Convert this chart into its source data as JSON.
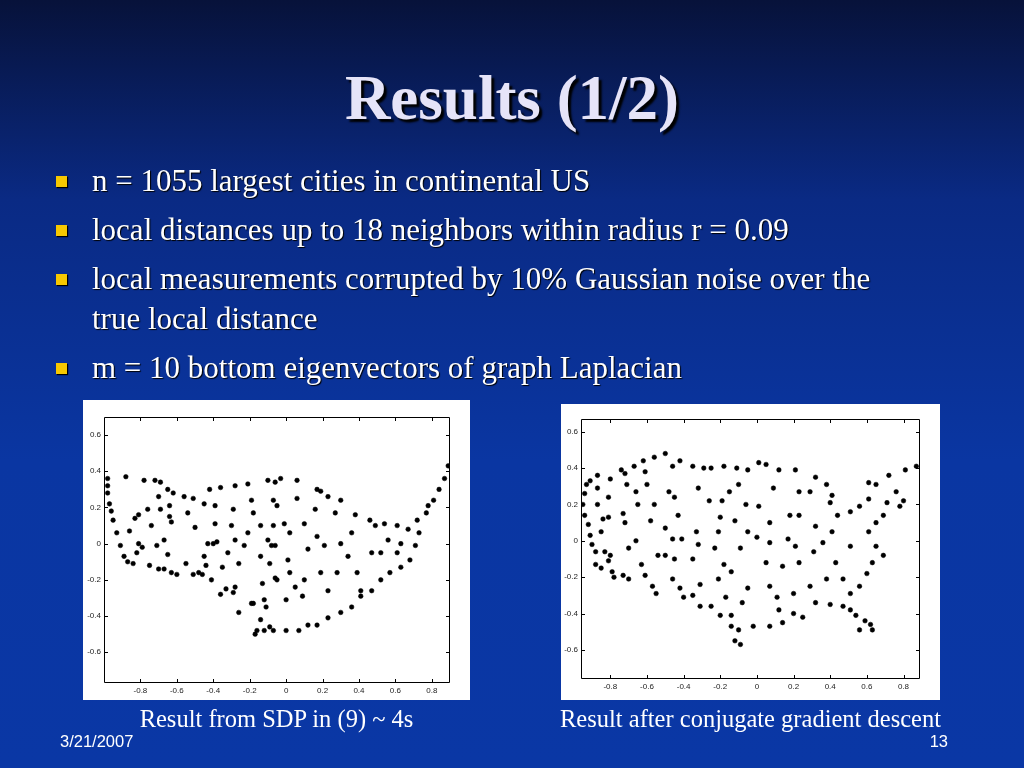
{
  "chart_data": [
    {
      "type": "other",
      "title": "Results (1/2)",
      "annotations": [
        "n = 1055 largest cities in continental US",
        "local distances up to 18 neighbors within radius r = 0.09",
        "local measurements corrupted by 10% Gaussian noise over the true local distance",
        "m = 10 bottom eigenvectors of graph Laplacian",
        "3/21/2007",
        "13"
      ]
    },
    {
      "type": "scatter",
      "annotations": [
        "Result from SDP in (9) ~ 4s"
      ],
      "color": "#000000",
      "marker": "circle",
      "xlim": [
        -1,
        0.9
      ],
      "ylim": [
        -0.77,
        0.7
      ],
      "xticks": [
        -0.8,
        -0.6,
        -0.4,
        -0.2,
        0,
        0.2,
        0.4,
        0.6,
        0.8
      ],
      "yticks": [
        -0.6,
        -0.4,
        -0.2,
        0,
        0.2,
        0.4,
        0.6
      ],
      "x": [
        -0.98,
        -0.98,
        -0.98,
        -0.97,
        -0.96,
        -0.95,
        -0.93,
        -0.91,
        -0.89,
        -0.87,
        -0.84,
        -0.88,
        -0.72,
        -0.69,
        -0.65,
        -0.62,
        -0.64,
        -0.64,
        -0.63,
        -0.7,
        -0.69,
        -0.78,
        -0.76,
        -0.81,
        -0.83,
        -0.86,
        -0.81,
        -0.82,
        -0.79,
        -0.74,
        -0.71,
        -0.67,
        -0.65,
        -0.7,
        -0.67,
        -0.63,
        -0.6,
        -0.75,
        -0.56,
        -0.51,
        -0.54,
        -0.5,
        -0.55,
        -0.51,
        -0.48,
        -0.4,
        -0.43,
        -0.38,
        -0.45,
        -0.44,
        -0.46,
        -0.41,
        -0.45,
        -0.42,
        -0.36,
        -0.39,
        -0.39,
        -0.36,
        -0.33,
        -0.35,
        -0.32,
        -0.28,
        -0.29,
        -0.3,
        -0.28,
        -0.29,
        -0.26,
        -0.26,
        -0.28,
        -0.21,
        -0.18,
        -0.19,
        -0.23,
        -0.21,
        -0.19,
        -0.18,
        -0.13,
        -0.12,
        -0.11,
        -0.14,
        -0.16,
        -0.17,
        -0.12,
        -0.09,
        -0.07,
        -0.14,
        -0.09,
        -0.1,
        -0.07,
        -0.06,
        -0.1,
        -0.14,
        -0.08,
        -0.06,
        -0.07,
        -0.03,
        0.06,
        0.17,
        0.19,
        0.23,
        0.3,
        0.27,
        0.38,
        0.46,
        0,
        0.07,
        0.12,
        0.17,
        0.23,
        0.3,
        0.36,
        0.41,
        0.47,
        0.52,
        0.57,
        0.63,
        0.68,
        0.71,
        0.73,
        0.77,
        0.81,
        0.84,
        0.87,
        0.89,
        0.49,
        0.54,
        0.61,
        0.67,
        0.72,
        0.78,
        -0.01,
        0.02,
        0.01,
        0.02,
        0,
        0.05,
        0.1,
        0.09,
        0.12,
        0.17,
        0.21,
        0.19,
        0.23,
        0.28,
        0.3,
        0.34,
        0.39,
        0.41,
        0.47,
        0.52,
        0.56,
        0.36,
        0.16,
        0.1,
        0.06,
        -0.05,
        -0.06,
        -0.05,
        0.63,
        0.61
      ],
      "values": [
        0.36,
        0.32,
        0.28,
        0.22,
        0.18,
        0.13,
        0.06,
        -0.01,
        -0.07,
        -0.1,
        -0.11,
        0.37,
        0.35,
        0.34,
        0.3,
        0.28,
        0.21,
        0.15,
        0.12,
        0.26,
        0.19,
        0.35,
        0.19,
        0.16,
        0.14,
        0.07,
        0,
        -0.05,
        -0.02,
        0.1,
        -0.01,
        0.02,
        -0.06,
        -0.14,
        -0.14,
        -0.16,
        -0.17,
        -0.12,
        0.26,
        0.25,
        0.17,
        0.09,
        -0.11,
        -0.17,
        -0.16,
        0,
        0,
        0.01,
        -0.07,
        -0.12,
        -0.17,
        -0.2,
        0.22,
        0.3,
        0.31,
        0.21,
        0.11,
        -0.28,
        -0.25,
        -0.13,
        -0.05,
        0.32,
        0.19,
        0.1,
        0.02,
        -0.27,
        -0.11,
        -0.38,
        -0.24,
        0.33,
        0.17,
        0.24,
        -0.01,
        0.06,
        -0.33,
        -0.33,
        -0.22,
        -0.31,
        -0.35,
        -0.42,
        -0.48,
        -0.5,
        -0.48,
        -0.46,
        -0.48,
        -0.07,
        -0.11,
        0.02,
        0.24,
        0.34,
        0.35,
        0.1,
        -0.01,
        -0.19,
        0.1,
        0.36,
        0.35,
        0.3,
        0.29,
        0.26,
        0.24,
        0.17,
        0.16,
        0.13,
        -0.48,
        -0.48,
        -0.45,
        -0.45,
        -0.41,
        -0.38,
        -0.35,
        -0.29,
        -0.26,
        -0.2,
        -0.16,
        -0.13,
        -0.09,
        -0.01,
        0.06,
        0.17,
        0.24,
        0.3,
        0.36,
        0.43,
        0.1,
        0.11,
        0.1,
        0.08,
        0.13,
        0.21,
        0.11,
        0.06,
        -0.09,
        -0.16,
        -0.31,
        -0.24,
        -0.2,
        -0.29,
        -0.03,
        0.04,
        -0.01,
        -0.16,
        -0.26,
        -0.16,
        0,
        -0.07,
        -0.16,
        -0.26,
        -0.05,
        -0.05,
        0.02,
        0.06,
        0.19,
        0.11,
        0.25,
        0.21,
        -0.01,
        -0.2,
        0,
        -0.05
      ]
    },
    {
      "type": "scatter",
      "annotations": [
        "Result after conjugate gradient descent"
      ],
      "color": "#000000",
      "marker": "circle",
      "xlim": [
        -0.96,
        0.89
      ],
      "ylim": [
        -0.76,
        0.67
      ],
      "xticks": [
        -0.8,
        -0.6,
        -0.4,
        -0.2,
        0,
        0.2,
        0.4,
        0.6,
        0.8
      ],
      "yticks": [
        -0.6,
        -0.4,
        -0.2,
        0,
        0.2,
        0.4,
        0.6
      ],
      "x": [
        -0.95,
        -0.94,
        -0.93,
        -0.91,
        -0.94,
        -0.92,
        -0.91,
        -0.9,
        -0.88,
        -0.88,
        -0.85,
        -0.81,
        -0.79,
        -0.78,
        -0.8,
        -0.83,
        -0.87,
        -0.87,
        -0.87,
        -0.84,
        -0.85,
        -0.81,
        -0.8,
        -0.81,
        -0.74,
        -0.72,
        -0.71,
        -0.73,
        -0.72,
        -0.7,
        -0.73,
        -0.7,
        -0.67,
        -0.62,
        -0.56,
        -0.5,
        -0.61,
        -0.6,
        -0.66,
        -0.65,
        -0.66,
        -0.61,
        -0.63,
        -0.57,
        -0.55,
        -0.56,
        -0.58,
        -0.54,
        -0.46,
        -0.42,
        -0.48,
        -0.45,
        -0.43,
        -0.5,
        -0.46,
        -0.41,
        -0.5,
        -0.45,
        -0.42,
        -0.46,
        -0.4,
        -0.35,
        -0.29,
        -0.25,
        -0.32,
        -0.26,
        -0.33,
        -0.32,
        -0.35,
        -0.31,
        -0.35,
        -0.31,
        -0.25,
        -0.18,
        -0.15,
        -0.19,
        -0.2,
        -0.21,
        -0.23,
        -0.18,
        -0.21,
        -0.2,
        -0.17,
        -0.11,
        -0.05,
        -0.1,
        -0.06,
        -0.12,
        -0.05,
        -0.09,
        -0.14,
        -0.05,
        -0.08,
        -0.14,
        -0.14,
        -0.12,
        -0.09,
        -0.1,
        0.01,
        0.05,
        0.12,
        0.21,
        0.32,
        0.29,
        0.38,
        0.41,
        0.44,
        0.51,
        0.56,
        0.61,
        0.65,
        0.72,
        0.76,
        0.8,
        0.78,
        0.69,
        0.65,
        0.61,
        0.71,
        0.81,
        0.87,
        0.61,
        0.65,
        0.69,
        0.63,
        0.6,
        0.56,
        0.51,
        0.51,
        0.54,
        0.56,
        0.59,
        0.63,
        0.62,
        0.47,
        0.4,
        0.32,
        0.25,
        0.2,
        0.14,
        0.07,
        -0.02,
        0.12,
        0.01,
        0.07,
        0.18,
        0.23,
        0.17,
        0.21,
        0.07,
        0,
        0.05,
        0.14,
        0.23,
        0.31,
        0.36,
        0.41,
        0.51,
        0.43,
        0.47,
        0.38,
        0.29,
        0.2,
        0.11,
        0.07,
        0.32,
        0.4,
        0.09,
        0.23
      ],
      "values": [
        0.2,
        0.26,
        0.31,
        0.33,
        0.14,
        0.09,
        0.03,
        -0.02,
        -0.06,
        -0.13,
        -0.15,
        -0.11,
        -0.17,
        -0.2,
        -0.08,
        -0.06,
        0.36,
        0.29,
        0.2,
        0.12,
        0.05,
        0.13,
        0.34,
        0.24,
        0.39,
        0.37,
        0.31,
        0.15,
        0.1,
        -0.04,
        -0.19,
        -0.21,
        0.41,
        0.44,
        0.46,
        0.48,
        0.38,
        0.31,
        0.27,
        0.2,
        0,
        -0.19,
        -0.13,
        -0.25,
        -0.29,
        0.2,
        0.11,
        -0.08,
        0.41,
        0.44,
        0.27,
        0.24,
        0.14,
        0.07,
        0.01,
        0.01,
        -0.08,
        -0.1,
        -0.26,
        -0.21,
        -0.31,
        0.41,
        0.4,
        0.4,
        0.29,
        0.22,
        0.05,
        -0.02,
        -0.1,
        -0.24,
        -0.3,
        -0.36,
        -0.36,
        0.41,
        0.27,
        0.22,
        0.13,
        0.05,
        -0.04,
        -0.13,
        -0.21,
        -0.41,
        -0.31,
        0.4,
        0.39,
        0.31,
        0.2,
        0.11,
        0.05,
        -0.04,
        -0.17,
        -0.26,
        -0.34,
        -0.41,
        -0.47,
        -0.55,
        -0.57,
        -0.49,
        0.43,
        0.42,
        0.39,
        0.39,
        0.35,
        0.27,
        0.31,
        0.25,
        0.14,
        0.16,
        0.19,
        0.23,
        0.31,
        0.36,
        0.27,
        0.22,
        0.19,
        0.14,
        0.1,
        0.05,
        0.21,
        0.39,
        0.41,
        0.32,
        -0.03,
        -0.08,
        -0.12,
        -0.18,
        -0.25,
        -0.29,
        -0.38,
        -0.41,
        -0.49,
        -0.44,
        -0.49,
        -0.46,
        -0.36,
        -0.35,
        -0.34,
        -0.42,
        -0.4,
        -0.45,
        -0.47,
        -0.47,
        -0.38,
        0.19,
        0.1,
        0.14,
        0.14,
        0.01,
        -0.03,
        -0.01,
        0.02,
        -0.12,
        -0.14,
        -0.12,
        -0.06,
        -0.01,
        0.05,
        -0.03,
        -0.12,
        -0.21,
        -0.21,
        -0.25,
        -0.29,
        -0.31,
        -0.25,
        0.08,
        0.21,
        0.29,
        0.27
      ]
    }
  ]
}
